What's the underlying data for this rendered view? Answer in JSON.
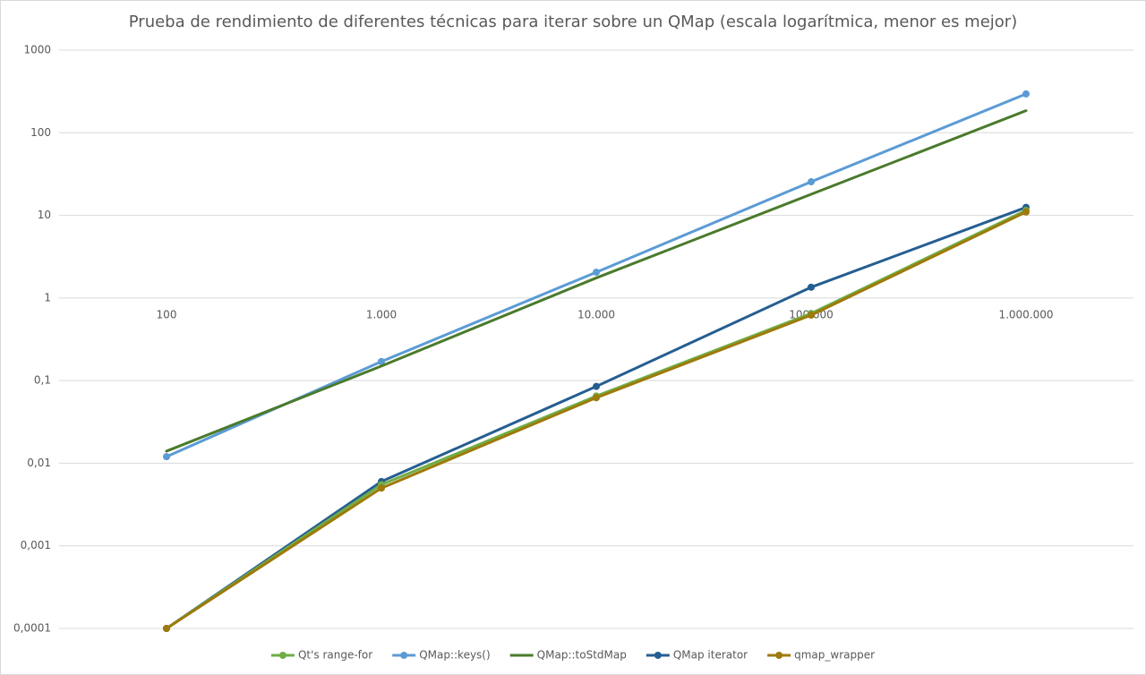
{
  "chart_data": {
    "type": "line",
    "title": "Prueba de rendimiento de diferentes técnicas para iterar sobre un QMap (escala logarítmica, menor es mejor)",
    "categories": [
      "100",
      "1.000",
      "10.000",
      "100.000",
      "1.000.000"
    ],
    "log_scale": true,
    "grid": true,
    "legend": "bottom",
    "ylim": [
      0.0001,
      1000
    ],
    "yticks": [
      {
        "value": 0.0001,
        "label": "0,0001"
      },
      {
        "value": 0.001,
        "label": "0,001"
      },
      {
        "value": 0.01,
        "label": "0,01"
      },
      {
        "value": 0.1,
        "label": "0,1"
      },
      1,
      10,
      100,
      1000
    ],
    "series": [
      {
        "name": "Qt's range-for",
        "color": "#70ad47",
        "markers": true,
        "values": [
          0.0001,
          0.0055,
          0.065,
          0.65,
          11.5
        ]
      },
      {
        "name": "QMap::keys()",
        "color": "#5b9bd5",
        "markers": true,
        "values": [
          0.012,
          0.17,
          2.05,
          25.5,
          295
        ]
      },
      {
        "name": "QMap::toStdMap",
        "color": "#4a7a2c",
        "markers": false,
        "values": [
          0.014,
          0.15,
          1.75,
          18,
          185
        ]
      },
      {
        "name": "QMap iterator",
        "color": "#255e91",
        "markers": true,
        "values": [
          0.0001,
          0.006,
          0.085,
          1.35,
          12.5
        ]
      },
      {
        "name": "qmap_wrapper",
        "color": "#9e7a0a",
        "markers": true,
        "values": [
          0.0001,
          0.005,
          0.062,
          0.62,
          11
        ]
      }
    ]
  }
}
